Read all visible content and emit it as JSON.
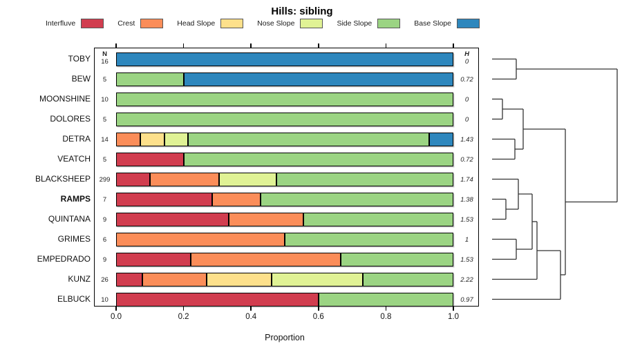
{
  "title": "Hills: sibling",
  "legend": {
    "items": [
      {
        "label": "Interfluve",
        "part": "interfluve"
      },
      {
        "label": "Crest",
        "part": "crest"
      },
      {
        "label": "Head Slope",
        "part": "head_slope"
      },
      {
        "label": "Nose Slope",
        "part": "nose_slope"
      },
      {
        "label": "Side Slope",
        "part": "side_slope"
      },
      {
        "label": "Base Slope",
        "part": "base_slope"
      }
    ]
  },
  "columns": {
    "n_header": "N",
    "h_header": "H"
  },
  "axis": {
    "label": "Proportion",
    "ticks": [
      "0.0",
      "0.2",
      "0.4",
      "0.6",
      "0.8",
      "1.0"
    ],
    "tick_values": [
      0,
      0.2,
      0.4,
      0.6,
      0.8,
      1.0
    ]
  },
  "colors": {
    "interfluve": "#d13d4f",
    "crest": "#fb8d59",
    "head_slope": "#fde08b",
    "nose_slope": "#e0f295",
    "side_slope": "#9bd483",
    "base_slope": "#2e87bd"
  },
  "chart_data": {
    "type": "bar",
    "stacked": true,
    "orientation": "horizontal",
    "title": "Hills: sibling",
    "xlabel": "Proportion",
    "xlim": [
      0,
      1
    ],
    "grid": false,
    "legend_position": "top",
    "categories": [
      "TOBY",
      "BEW",
      "MOONSHINE",
      "DOLORES",
      "DETRA",
      "VEATCH",
      "BLACKSHEEP",
      "RAMPS",
      "QUINTANA",
      "GRIMES",
      "EMPEDRADO",
      "KUNZ",
      "ELBUCK"
    ],
    "n_values": [
      "16",
      "5",
      "10",
      "5",
      "14",
      "5",
      "299",
      "7",
      "9",
      "6",
      "9",
      "26",
      "10"
    ],
    "h_values": [
      "0",
      "0.72",
      "0",
      "0",
      "1.43",
      "0.72",
      "1.74",
      "1.38",
      "1.53",
      "1",
      "1.53",
      "2.22",
      "0.97"
    ],
    "rows": [
      {
        "name": "TOBY",
        "bold": false,
        "n": "16",
        "h": "0",
        "segments": [
          {
            "part": "base_slope",
            "value": 1
          }
        ]
      },
      {
        "name": "BEW",
        "bold": false,
        "n": "5",
        "h": "0.72",
        "segments": [
          {
            "part": "side_slope",
            "value": 0.2
          },
          {
            "part": "base_slope",
            "value": 0.8
          }
        ]
      },
      {
        "name": "MOONSHINE",
        "bold": false,
        "n": "10",
        "h": "0",
        "segments": [
          {
            "part": "side_slope",
            "value": 1
          }
        ]
      },
      {
        "name": "DOLORES",
        "bold": false,
        "n": "5",
        "h": "0",
        "segments": [
          {
            "part": "side_slope",
            "value": 1
          }
        ]
      },
      {
        "name": "DETRA",
        "bold": false,
        "n": "14",
        "h": "1.43",
        "segments": [
          {
            "part": "crest",
            "value": 0.0714
          },
          {
            "part": "head_slope",
            "value": 0.0714
          },
          {
            "part": "nose_slope",
            "value": 0.0714
          },
          {
            "part": "side_slope",
            "value": 0.7144
          },
          {
            "part": "base_slope",
            "value": 0.0714
          }
        ]
      },
      {
        "name": "VEATCH",
        "bold": false,
        "n": "5",
        "h": "0.72",
        "segments": [
          {
            "part": "interfluve",
            "value": 0.2
          },
          {
            "part": "side_slope",
            "value": 0.8
          }
        ]
      },
      {
        "name": "BLACKSHEEP",
        "bold": false,
        "n": "299",
        "h": "1.74",
        "segments": [
          {
            "part": "interfluve",
            "value": 0.1
          },
          {
            "part": "crest",
            "value": 0.205
          },
          {
            "part": "nose_slope",
            "value": 0.17
          },
          {
            "part": "side_slope",
            "value": 0.525
          }
        ]
      },
      {
        "name": "RAMPS",
        "bold": true,
        "n": "7",
        "h": "1.38",
        "segments": [
          {
            "part": "interfluve",
            "value": 0.2857
          },
          {
            "part": "crest",
            "value": 0.1429
          },
          {
            "part": "side_slope",
            "value": 0.5714
          }
        ]
      },
      {
        "name": "QUINTANA",
        "bold": false,
        "n": "9",
        "h": "1.53",
        "segments": [
          {
            "part": "interfluve",
            "value": 0.3333
          },
          {
            "part": "crest",
            "value": 0.2222
          },
          {
            "part": "side_slope",
            "value": 0.4445
          }
        ]
      },
      {
        "name": "GRIMES",
        "bold": false,
        "n": "6",
        "h": "1",
        "segments": [
          {
            "part": "crest",
            "value": 0.5
          },
          {
            "part": "side_slope",
            "value": 0.5
          }
        ]
      },
      {
        "name": "EMPEDRADO",
        "bold": false,
        "n": "9",
        "h": "1.53",
        "segments": [
          {
            "part": "interfluve",
            "value": 0.2222
          },
          {
            "part": "crest",
            "value": 0.4445
          },
          {
            "part": "side_slope",
            "value": 0.3333
          }
        ]
      },
      {
        "name": "KUNZ",
        "bold": false,
        "n": "26",
        "h": "2.22",
        "segments": [
          {
            "part": "interfluve",
            "value": 0.0769
          },
          {
            "part": "crest",
            "value": 0.1923
          },
          {
            "part": "head_slope",
            "value": 0.1923
          },
          {
            "part": "nose_slope",
            "value": 0.2693
          },
          {
            "part": "side_slope",
            "value": 0.2692
          }
        ]
      },
      {
        "name": "ELBUCK",
        "bold": false,
        "n": "10",
        "h": "0.97",
        "segments": [
          {
            "part": "interfluve",
            "value": 0.6
          },
          {
            "part": "side_slope",
            "value": 0.4
          }
        ]
      }
    ],
    "dendrogram": {
      "leaf_x": 712,
      "segments": [
        [
          712,
          85.5,
          747,
          85.5
        ],
        [
          712,
          114.5,
          747,
          114.5
        ],
        [
          747,
          85.5,
          747,
          114.5
        ],
        [
          747,
          100,
          893,
          100
        ],
        [
          712,
          143.5,
          727,
          143.5
        ],
        [
          712,
          172.5,
          727,
          172.5
        ],
        [
          727,
          143.5,
          727,
          172.5
        ],
        [
          727,
          158,
          757,
          158
        ],
        [
          712,
          201.5,
          745,
          201.5
        ],
        [
          712,
          230.5,
          745,
          230.5
        ],
        [
          745,
          201.5,
          745,
          230.5
        ],
        [
          745,
          216,
          757,
          216
        ],
        [
          757,
          158,
          757,
          216
        ],
        [
          757,
          187,
          818,
          187
        ],
        [
          712,
          259.5,
          750,
          259.5
        ],
        [
          712,
          288.5,
          732,
          288.5
        ],
        [
          712,
          317.5,
          732,
          317.5
        ],
        [
          732,
          288.5,
          732,
          317.5
        ],
        [
          732,
          303,
          750,
          303
        ],
        [
          750,
          259.5,
          750,
          303
        ],
        [
          750,
          281,
          770,
          281
        ],
        [
          712,
          346.5,
          747,
          346.5
        ],
        [
          712,
          375.5,
          747,
          375.5
        ],
        [
          747,
          346.5,
          747,
          375.5
        ],
        [
          747,
          361,
          770,
          361
        ],
        [
          770,
          281,
          770,
          361
        ],
        [
          770,
          321,
          777,
          321
        ],
        [
          712,
          404.5,
          777,
          404.5
        ],
        [
          777,
          321,
          777,
          404.5
        ],
        [
          777,
          363,
          811,
          363
        ],
        [
          712,
          433.5,
          811,
          433.5
        ],
        [
          811,
          363,
          811,
          433.5
        ],
        [
          811,
          398,
          818,
          398
        ],
        [
          818,
          187,
          818,
          398
        ],
        [
          818,
          292.5,
          893,
          292.5
        ],
        [
          893,
          100,
          893,
          292.5
        ]
      ]
    }
  }
}
